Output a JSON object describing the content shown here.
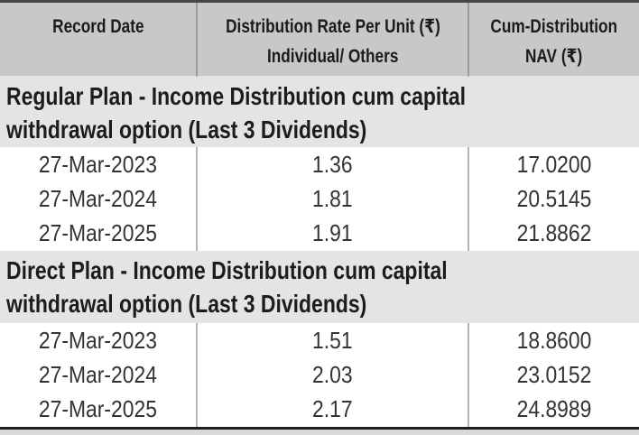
{
  "table": {
    "header": {
      "record_date": "Record Date",
      "rate_line1": "Distribution Rate Per Unit  (₹)",
      "rate_line2": "Individual/ Others",
      "nav_line1": "Cum-Distribution",
      "nav_line2": "NAV (₹)"
    },
    "sections": [
      {
        "title_line1": "Regular Plan - Income Distribution cum capital",
        "title_line2": "withdrawal option (Last 3 Dividends)",
        "rows": [
          {
            "record_date": "27-Mar-2023",
            "rate": "1.36",
            "nav": "17.0200"
          },
          {
            "record_date": "27-Mar-2024",
            "rate": "1.81",
            "nav": "20.5145"
          },
          {
            "record_date": "27-Mar-2025",
            "rate": "1.91",
            "nav": "21.8862"
          }
        ]
      },
      {
        "title_line1": "Direct Plan - Income Distribution cum capital",
        "title_line2": "withdrawal option (Last 3 Dividends)",
        "rows": [
          {
            "record_date": "27-Mar-2023",
            "rate": "1.51",
            "nav": "18.8600"
          },
          {
            "record_date": "27-Mar-2024",
            "rate": "2.03",
            "nav": "23.0152"
          },
          {
            "record_date": "27-Mar-2025",
            "rate": "2.17",
            "nav": "24.8989"
          }
        ]
      }
    ]
  },
  "colors": {
    "header_bg": "#c8c8c8",
    "section_bg": "#e4e4e4",
    "row_bg": "#ffffff",
    "header_text": "#1b1b1b",
    "data_text": "#333333",
    "column_divider_header": "#9a9a9a",
    "column_divider_data": "#b5b5b5",
    "outer_border_top": "#454545",
    "outer_border_bottom": "#1f1f1f",
    "page_background": "#d9d9d9"
  }
}
